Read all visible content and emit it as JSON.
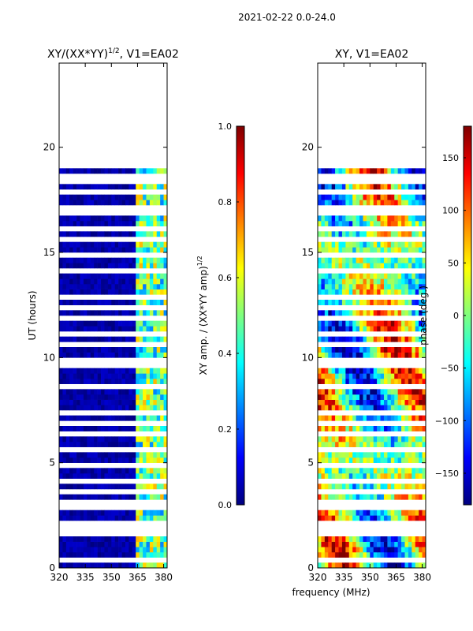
{
  "figure": {
    "suptitle": "2021-02-22 0.0-24.0",
    "shared_xlabel": "frequency (MHz)",
    "colors": {
      "jet": [
        "#00007f",
        "#0000ff",
        "#007fff",
        "#00ffff",
        "#7fff7f",
        "#ffff00",
        "#ff7f00",
        "#ff0000",
        "#7f0000"
      ],
      "background": "#ffffff",
      "frame": "#000000"
    }
  },
  "chart_data": [
    {
      "type": "heatmap",
      "name": "left-amplitude",
      "title": "XY/(XX*YY)",
      "title_sup": "1/2",
      "title_suffix": ", V1=EA02",
      "xlabel": "frequency (MHz)",
      "ylabel": "UT (hours)",
      "xlim": [
        320,
        382
      ],
      "ylim": [
        0,
        24
      ],
      "xticks": [
        320,
        335,
        350,
        365,
        380
      ],
      "yticks": [
        0,
        5,
        10,
        15,
        20
      ],
      "data_coverage_hours": [
        0,
        19
      ],
      "gaps_hours": [
        0.3,
        1.5,
        1.9,
        2.2,
        2.9,
        3.1,
        3.6,
        4.1,
        4.9,
        5.5,
        6.3,
        6.9,
        7.3,
        8.5,
        9.7,
        9.9,
        10.6,
        11.0,
        11.8,
        12.3,
        12.9,
        14.1,
        14.9,
        15.5,
        16.2,
        16.8,
        17.1,
        17.9,
        18.3,
        18.6
      ],
      "bright_band_mhz": [
        363,
        382
      ],
      "colorbar": {
        "label": "XY amp. / (XX*YY amp)",
        "label_sup": "1/2",
        "range": [
          0.0,
          1.0
        ],
        "ticks": [
          "0.0",
          "0.2",
          "0.4",
          "0.6",
          "0.8",
          "1.0"
        ],
        "tick_values": [
          0.0,
          0.2,
          0.4,
          0.6,
          0.8,
          1.0
        ]
      }
    },
    {
      "type": "heatmap",
      "name": "right-phase",
      "title": "XY, V1=EA02",
      "xlabel": "frequency (MHz)",
      "ylabel": "",
      "xlim": [
        320,
        382
      ],
      "ylim": [
        0,
        24
      ],
      "xticks": [
        320,
        335,
        350,
        365,
        380
      ],
      "yticks": [
        0,
        5,
        10,
        15,
        20
      ],
      "data_coverage_hours": [
        0,
        19
      ],
      "gaps_hours": [
        0.3,
        1.5,
        1.9,
        2.2,
        2.9,
        3.1,
        3.6,
        4.1,
        4.9,
        5.5,
        6.3,
        6.9,
        7.3,
        8.5,
        9.7,
        9.9,
        10.6,
        11.0,
        11.8,
        12.3,
        12.9,
        14.1,
        14.9,
        15.5,
        16.2,
        16.8,
        17.1,
        17.9,
        18.3,
        18.6
      ],
      "colorbar": {
        "label": "phase (deg.)",
        "range": [
          -180,
          180
        ],
        "ticks": [
          "−150",
          "−100",
          "−50",
          "0",
          "50",
          "100",
          "150"
        ],
        "tick_values": [
          -150,
          -100,
          -50,
          0,
          50,
          100,
          150
        ]
      }
    }
  ]
}
